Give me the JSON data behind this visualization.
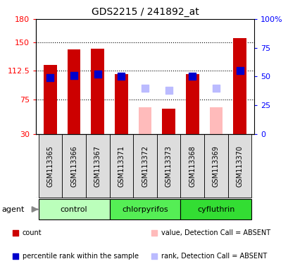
{
  "title": "GDS2215 / 241892_at",
  "samples": [
    "GSM113365",
    "GSM113366",
    "GSM113367",
    "GSM113371",
    "GSM113372",
    "GSM113373",
    "GSM113368",
    "GSM113369",
    "GSM113370"
  ],
  "groups": [
    {
      "name": "control",
      "indices": [
        0,
        1,
        2
      ],
      "color": "#bbffbb"
    },
    {
      "name": "chlorpyrifos",
      "indices": [
        3,
        4,
        5
      ],
      "color": "#55ee55"
    },
    {
      "name": "cyfluthrin",
      "indices": [
        6,
        7,
        8
      ],
      "color": "#33dd33"
    }
  ],
  "bar_values": [
    120,
    140,
    141,
    108,
    null,
    63,
    108,
    null,
    155
  ],
  "bar_colors": [
    "#cc0000",
    "#cc0000",
    "#cc0000",
    "#cc0000",
    null,
    "#cc0000",
    "#cc0000",
    null,
    "#cc0000"
  ],
  "pink_bar_values": [
    null,
    null,
    null,
    null,
    65,
    null,
    null,
    65,
    null
  ],
  "pink_bar_present": [
    false,
    false,
    false,
    false,
    true,
    false,
    false,
    true,
    false
  ],
  "blue_dot_values": [
    49,
    51,
    52,
    50,
    null,
    null,
    50,
    null,
    55
  ],
  "lav_dot_values": [
    null,
    null,
    null,
    null,
    40,
    38,
    null,
    40,
    null
  ],
  "ylim_left": [
    30,
    180
  ],
  "ylim_right": [
    0,
    100
  ],
  "yticks_left": [
    30,
    75,
    112.5,
    150,
    180
  ],
  "yticks_right": [
    0,
    25,
    50,
    75,
    100
  ],
  "ytick_labels_left": [
    "30",
    "75",
    "112.5",
    "150",
    "180"
  ],
  "ytick_labels_right": [
    "0",
    "25",
    "50",
    "75",
    "100%"
  ],
  "hlines": [
    75,
    112.5,
    150
  ],
  "legend_items": [
    {
      "label": "count",
      "color": "#cc0000"
    },
    {
      "label": "percentile rank within the sample",
      "color": "#0000cc"
    },
    {
      "label": "value, Detection Call = ABSENT",
      "color": "#ffbbbb"
    },
    {
      "label": "rank, Detection Call = ABSENT",
      "color": "#bbbbff"
    }
  ],
  "bar_width": 0.55,
  "dot_size": 55
}
